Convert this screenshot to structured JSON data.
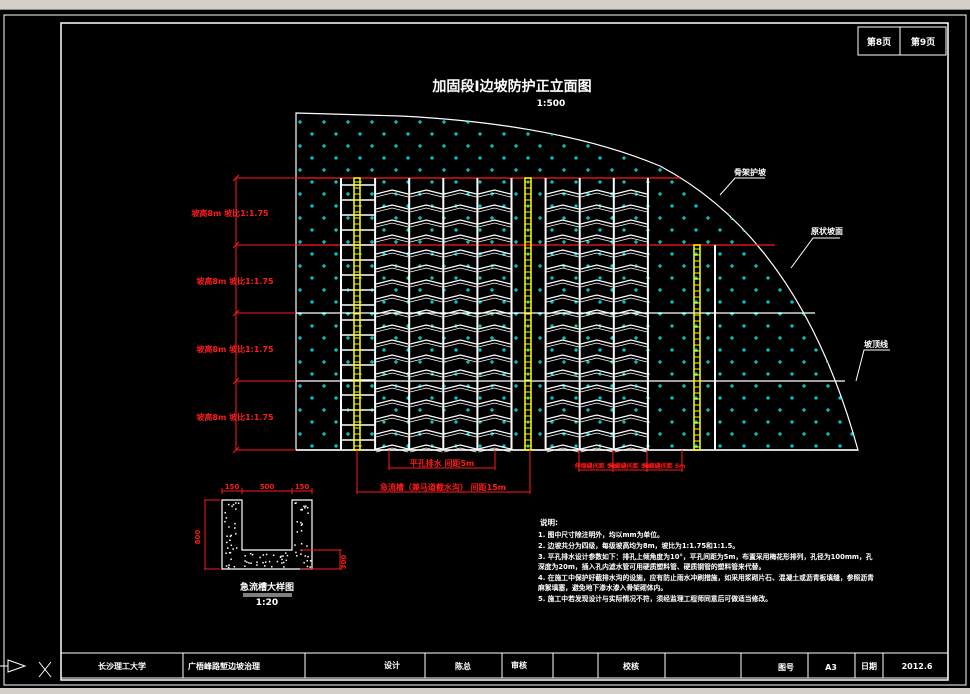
{
  "colors": {
    "background": "#000000",
    "line": "#ffffff",
    "dimension": "#ff1a1a",
    "fill_mark": "#00ffff",
    "ladder": "#ffff00"
  },
  "sheet": {
    "page_current": "第8页",
    "page_total": "第9页"
  },
  "drawing": {
    "title": "加固段Ⅰ边坡防护正立面图",
    "scale": "1:500",
    "slope_labels": [
      "坡高8m 坡比1:1.75",
      "坡高8m 坡比1:1.75",
      "坡高8m 坡比1:1.75",
      "坡高8m 坡比1:1.75"
    ],
    "callouts": [
      "骨架护坡",
      "原状坡面",
      "坡顶线"
    ],
    "dim_drain": "平孔排水 间距5m",
    "dim_chute": "急流槽（兼马道截水沟） 间距15m",
    "dim_joints": [
      "伸缩缝间距 5m",
      "伸缩缝间距 5m",
      "伸缩缝间距 5m"
    ]
  },
  "detail": {
    "title": "急流槽大样图",
    "scale": "1:20",
    "dims": [
      "150",
      "500",
      "150",
      "800",
      "300"
    ]
  },
  "notes": {
    "heading": "说明:",
    "items": [
      "1. 图中尺寸除注明外，均以mm为单位。",
      "2. 边坡共分为四级，每级坡高均为8m，坡比为1:1.75和1:1.5。",
      "3. 平孔排水设计参数如下：排孔上倾角度为10°，平孔间距为5m，布置采用梅花形排列，孔径为100mm，孔",
      "   深度为20m，插入孔内滤水管可用硬质塑料管、硬质钢管的塑料管来代替。",
      "4. 在施工中保护好截排水沟的设施，应有防止雨水冲刷措施，如采用浆砌片石、混凝土或沥青板填缝，参照沥青",
      "   麻絮填塞，避免地下渗水渗入骨架砌体内。",
      "5. 施工中若发现设计与实际情况不符，须经监理工程师同意后可做适当修改。"
    ]
  },
  "title_block": {
    "school": "长沙理工大学",
    "project": "广梧峰路堑边坡治理",
    "design_label": "设计",
    "designer": "陈总",
    "review_label": "审核",
    "check_label": "校核",
    "drawing_no_label": "图号",
    "size": "A3",
    "date_label": "日期",
    "date": "2012.6"
  }
}
